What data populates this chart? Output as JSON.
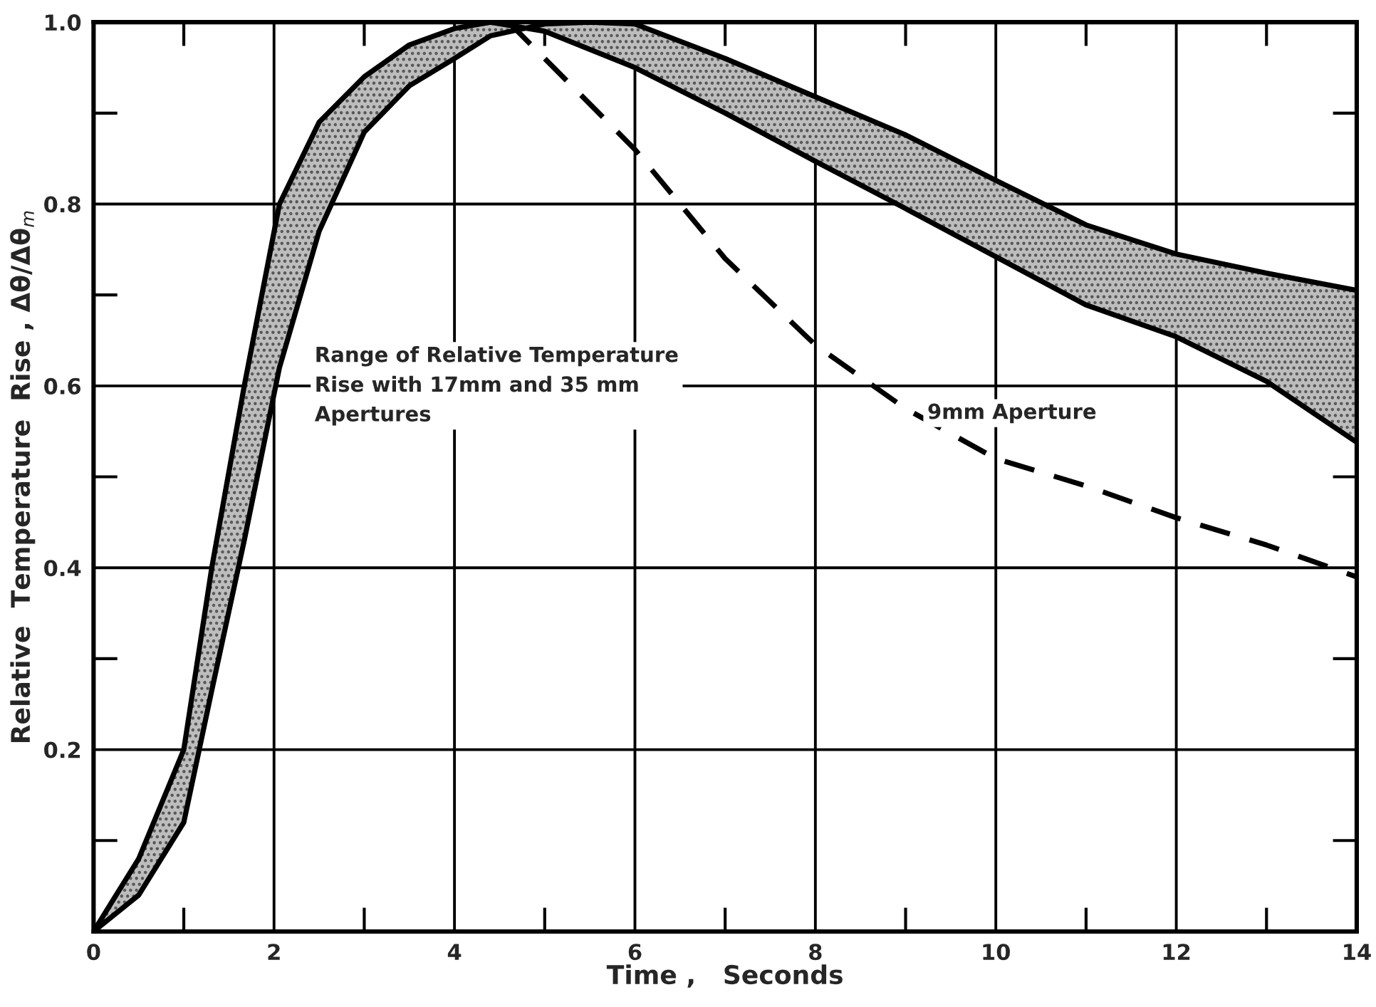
{
  "chart_data": {
    "type": "line",
    "xlabel": "Time ,   Seconds",
    "ylabel": "Relative  Temperature  Rise , Δθ/Δθ$_{m}$",
    "xlim": [
      0,
      14
    ],
    "ylim": [
      0,
      1.0
    ],
    "xticks": [
      0,
      2,
      4,
      6,
      8,
      10,
      12,
      14
    ],
    "yticks": [
      0.2,
      0.4,
      0.6,
      0.8,
      {
        "value": 1.0,
        "label": "1.0"
      }
    ],
    "grid": true,
    "legend": false,
    "marker": "none",
    "series": [
      {
        "color": "#000000",
        "line_style": "solid",
        "x": [
          0,
          0.5,
          1,
          1.31,
          1.67,
          2.06,
          2.5,
          3,
          3.5,
          4,
          4.4,
          5,
          5.5,
          6,
          7,
          8,
          9,
          10,
          11,
          12,
          13,
          14
        ],
        "values": [
          0,
          0.08,
          0.2,
          0.4,
          0.6,
          0.8,
          0.89,
          0.94,
          0.975,
          0.993,
          1.0,
          0.99,
          0.97,
          0.95,
          0.9,
          0.847,
          0.795,
          0.742,
          0.689,
          0.654,
          0.605,
          0.538
        ]
      },
      {
        "color": "#000000",
        "line_style": "solid",
        "x": [
          0,
          0.5,
          1,
          1.31,
          1.67,
          2.06,
          2.5,
          3,
          3.5,
          4,
          4.4,
          5,
          5.5,
          6,
          7,
          8,
          9,
          10,
          11,
          12,
          13,
          14
        ],
        "values": [
          0,
          0.04,
          0.12,
          0.265,
          0.43,
          0.62,
          0.77,
          0.879,
          0.93,
          0.96,
          0.985,
          0.998,
          1.0,
          0.998,
          0.96,
          0.918,
          0.876,
          0.826,
          0.777,
          0.745,
          0.724,
          0.705
        ],
        "lower": [
          0,
          0.08,
          0.2,
          0.4,
          0.6,
          0.8,
          0.89,
          0.94,
          0.975,
          0.993,
          1.0,
          0.99,
          0.97,
          0.95,
          0.9,
          0.847,
          0.795,
          0.742,
          0.689,
          0.654,
          0.605,
          0.538
        ],
        "upper": [
          0,
          0.04,
          0.12,
          0.265,
          0.43,
          0.62,
          0.77,
          0.879,
          0.93,
          0.96,
          0.985,
          0.998,
          1.0,
          0.998,
          0.96,
          0.918,
          0.876,
          0.826,
          0.777,
          0.745,
          0.724,
          0.705
        ]
      },
      {
        "color": "#000000",
        "line_style": "dashed",
        "x": [
          4.6,
          5,
          6,
          7,
          8,
          9,
          10,
          11,
          12,
          13,
          14
        ],
        "values": [
          1.0,
          0.96,
          0.86,
          0.74,
          0.645,
          0.575,
          0.52,
          0.49,
          0.455,
          0.425,
          0.39
        ]
      }
    ],
    "annotations": [
      "Range of Relative Temperature\nRise with 17mm and 35 mm\nApertures",
      "9mm Aperture"
    ]
  }
}
